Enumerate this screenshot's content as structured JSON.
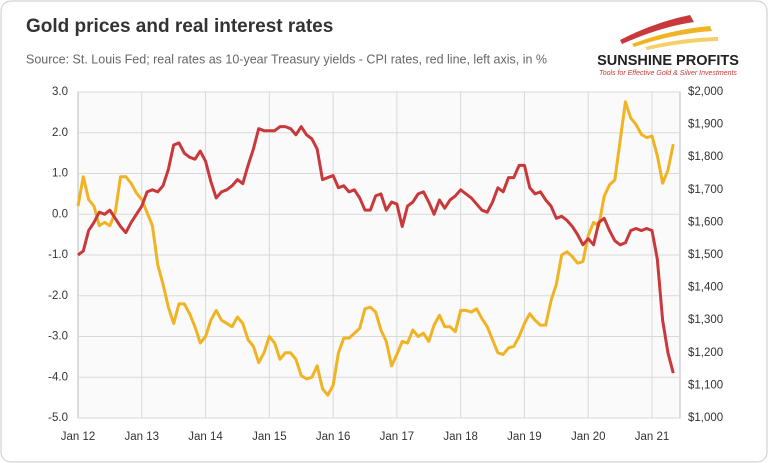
{
  "chart_data": {
    "type": "line",
    "title": "Gold prices and real interest rates",
    "subtitle": "Source: St. Louis Fed; real rates as 10-year Treasury yields - CPI rates, red line, left axis, in %",
    "logo": {
      "name": "SUNSHINE PROFITS",
      "tagline": "Tools for Effective Gold & Silver Investments"
    },
    "categories": [
      "Jan 12",
      null,
      null,
      null,
      null,
      null,
      null,
      null,
      null,
      null,
      null,
      null,
      "Jan 13",
      null,
      null,
      null,
      null,
      null,
      null,
      null,
      null,
      null,
      null,
      null,
      "Jan 14",
      null,
      null,
      null,
      null,
      null,
      null,
      null,
      null,
      null,
      null,
      null,
      "Jan 15",
      null,
      null,
      null,
      null,
      null,
      null,
      null,
      null,
      null,
      null,
      null,
      "Jan 16",
      null,
      null,
      null,
      null,
      null,
      null,
      null,
      null,
      null,
      null,
      null,
      "Jan 17",
      null,
      null,
      null,
      null,
      null,
      null,
      null,
      null,
      null,
      null,
      null,
      "Jan 18",
      null,
      null,
      null,
      null,
      null,
      null,
      null,
      null,
      null,
      null,
      null,
      "Jan 19",
      null,
      null,
      null,
      null,
      null,
      null,
      null,
      null,
      null,
      null,
      null,
      "Jan 20",
      null,
      null,
      null,
      null,
      null,
      null,
      null,
      null,
      null,
      null,
      null,
      "Jan 21",
      null,
      null,
      null,
      null
    ],
    "series": [
      {
        "color": "#c9383a",
        "values": [
          -1.0,
          -0.9,
          -0.4,
          -0.2,
          0.05,
          0.0,
          0.1,
          -0.1,
          -0.3,
          -0.45,
          -0.2,
          0.0,
          0.2,
          0.55,
          0.6,
          0.55,
          0.7,
          1.1,
          1.7,
          1.75,
          1.5,
          1.4,
          1.35,
          1.55,
          1.3,
          0.8,
          0.4,
          0.55,
          0.6,
          0.7,
          0.85,
          0.75,
          1.2,
          1.6,
          2.1,
          2.05,
          2.05,
          2.05,
          2.15,
          2.15,
          2.1,
          1.95,
          2.15,
          1.95,
          1.85,
          1.6,
          0.85,
          0.9,
          0.95,
          0.65,
          0.7,
          0.55,
          0.6,
          0.4,
          0.1,
          0.1,
          0.45,
          0.5,
          0.1,
          0.3,
          0.25,
          -0.3,
          0.2,
          0.3,
          0.5,
          0.55,
          0.3,
          0.0,
          0.35,
          0.15,
          0.35,
          0.45,
          0.6,
          0.5,
          0.4,
          0.25,
          0.1,
          0.05,
          0.3,
          0.65,
          0.55,
          0.9,
          0.9,
          1.2,
          1.2,
          0.65,
          0.5,
          0.55,
          0.35,
          0.2,
          -0.1,
          -0.05,
          -0.15,
          -0.3,
          -0.5,
          -0.75,
          -0.6,
          -0.75,
          -0.2,
          -0.1,
          -0.4,
          -0.65,
          -0.75,
          -0.7,
          -0.4,
          -0.35,
          -0.4,
          -0.35,
          -0.4,
          -1.1,
          -2.6,
          -3.4,
          -3.9
        ]
      },
      {
        "color": "#f0b323",
        "axis": "y2",
        "values": [
          1650,
          1740,
          1670,
          1650,
          1590,
          1600,
          1590,
          1630,
          1740,
          1740,
          1720,
          1690,
          1670,
          1630,
          1590,
          1470,
          1410,
          1340,
          1290,
          1350,
          1350,
          1320,
          1280,
          1230,
          1250,
          1300,
          1330,
          1300,
          1290,
          1280,
          1310,
          1290,
          1240,
          1220,
          1170,
          1200,
          1250,
          1230,
          1180,
          1200,
          1200,
          1180,
          1130,
          1120,
          1125,
          1160,
          1090,
          1070,
          1100,
          1200,
          1245,
          1245,
          1260,
          1275,
          1335,
          1340,
          1325,
          1270,
          1235,
          1160,
          1195,
          1235,
          1230,
          1270,
          1250,
          1260,
          1235,
          1285,
          1315,
          1280,
          1280,
          1265,
          1330,
          1330,
          1325,
          1335,
          1305,
          1280,
          1240,
          1200,
          1195,
          1215,
          1220,
          1250,
          1290,
          1320,
          1300,
          1285,
          1285,
          1360,
          1410,
          1500,
          1510,
          1495,
          1475,
          1480,
          1560,
          1600,
          1590,
          1680,
          1715,
          1730,
          1850,
          1970,
          1920,
          1900,
          1870,
          1860,
          1865,
          1805,
          1720,
          1760,
          1840
        ]
      }
    ],
    "ylim": [
      -5,
      3
    ],
    "yticks": [
      {
        "value": 3,
        "label": "3.0"
      },
      {
        "value": 2,
        "label": "2.0"
      },
      {
        "value": 1,
        "label": "1.0"
      },
      {
        "value": 0,
        "label": "0.0"
      },
      {
        "value": -1,
        "label": "-1.0"
      },
      {
        "value": -2,
        "label": "-2.0"
      },
      {
        "value": -3,
        "label": "-3.0"
      },
      {
        "value": -4,
        "label": "-4.0"
      },
      {
        "value": -5,
        "label": "-5.0"
      }
    ],
    "y2lim": [
      1000,
      2000
    ],
    "y2ticks": [
      {
        "value": 2000,
        "label": "$2,000"
      },
      {
        "value": 1900,
        "label": "$1,900"
      },
      {
        "value": 1800,
        "label": "$1,800"
      },
      {
        "value": 1700,
        "label": "$1,700"
      },
      {
        "value": 1600,
        "label": "$1,600"
      },
      {
        "value": 1500,
        "label": "$1,500"
      },
      {
        "value": 1400,
        "label": "$1,400"
      },
      {
        "value": 1300,
        "label": "$1,300"
      },
      {
        "value": 1200,
        "label": "$1,200"
      },
      {
        "value": 1100,
        "label": "$1,100"
      },
      {
        "value": 1000,
        "label": "$1,000"
      }
    ],
    "grid": true
  }
}
